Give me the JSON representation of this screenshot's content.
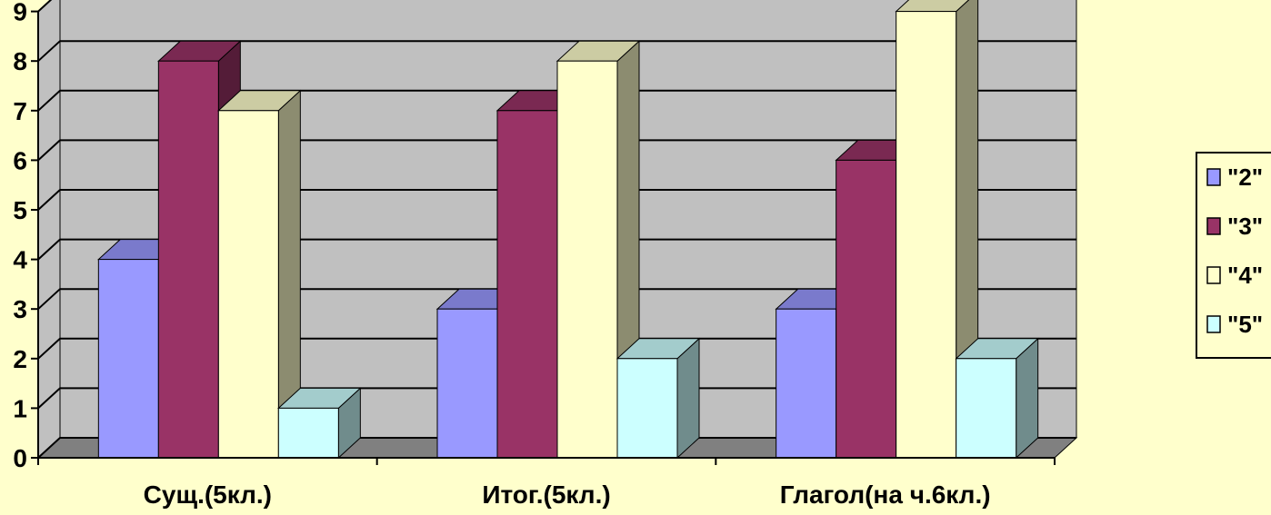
{
  "chart_data": {
    "type": "bar",
    "style": "3d-clustered-column",
    "categories": [
      "Сущ.(5кл.)",
      "Итог.(5кл.)",
      "Глагол(на ч.6кл.)"
    ],
    "series": [
      {
        "name": "\"2\"",
        "values": [
          4,
          3,
          3
        ],
        "color": "#9999ff"
      },
      {
        "name": "\"3\"",
        "values": [
          8,
          7,
          6
        ],
        "color": "#993366"
      },
      {
        "name": "\"4\"",
        "values": [
          7,
          8,
          9
        ],
        "color": "#ffffcc"
      },
      {
        "name": "\"5\"",
        "values": [
          1,
          2,
          2
        ],
        "color": "#ccffff"
      }
    ],
    "yticks": [
      "0",
      "1",
      "2",
      "3",
      "4",
      "5",
      "6",
      "7",
      "8",
      "9"
    ],
    "ylim": [
      0,
      9
    ],
    "grid": true,
    "legend_position": "right"
  },
  "colors": {
    "background": "#ffffcc",
    "wall": "#c0c0c0",
    "floor": "#808080",
    "gridline": "#000000"
  }
}
